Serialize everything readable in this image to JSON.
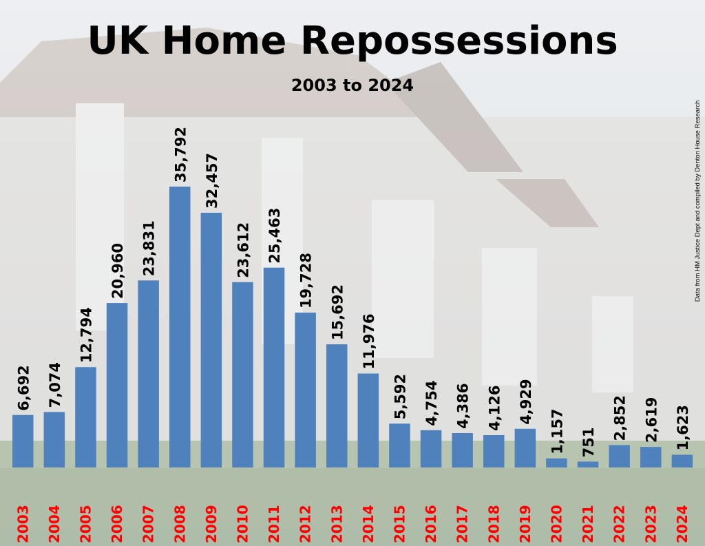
{
  "chart_data": {
    "type": "bar",
    "title": "UK Home Repossessions",
    "subtitle": "2003 to 2024",
    "source_note": "Data from HM Justice Dept and compiled by Denton House Research",
    "categories": [
      "2003",
      "2004",
      "2005",
      "2006",
      "2007",
      "2008",
      "2009",
      "2010",
      "2011",
      "2012",
      "2013",
      "2014",
      "2015",
      "2016",
      "2017",
      "2018",
      "2019",
      "2020",
      "2021",
      "2022",
      "2023",
      "2024"
    ],
    "values": [
      6692,
      7074,
      12794,
      20960,
      23831,
      35792,
      32457,
      23612,
      25463,
      19728,
      15692,
      11976,
      5592,
      4754,
      4386,
      4126,
      4929,
      1157,
      751,
      2852,
      2619,
      1623
    ],
    "value_labels": [
      "6,692",
      "7,074",
      "12,794",
      "20,960",
      "23,831",
      "35,792",
      "32,457",
      "23,612",
      "25,463",
      "19,728",
      "15,692",
      "11,976",
      "5,592",
      "4,754",
      "4,386",
      "4,126",
      "4,929",
      "1,157",
      "751",
      "2,852",
      "2,619",
      "1,623"
    ],
    "xlabel": "",
    "ylabel": "",
    "ylim": [
      0,
      40000
    ],
    "grid": false,
    "legend": "none",
    "colors": {
      "bar": "#4f81bd",
      "year_label": "#ff0000",
      "value_label": "#000000"
    }
  }
}
